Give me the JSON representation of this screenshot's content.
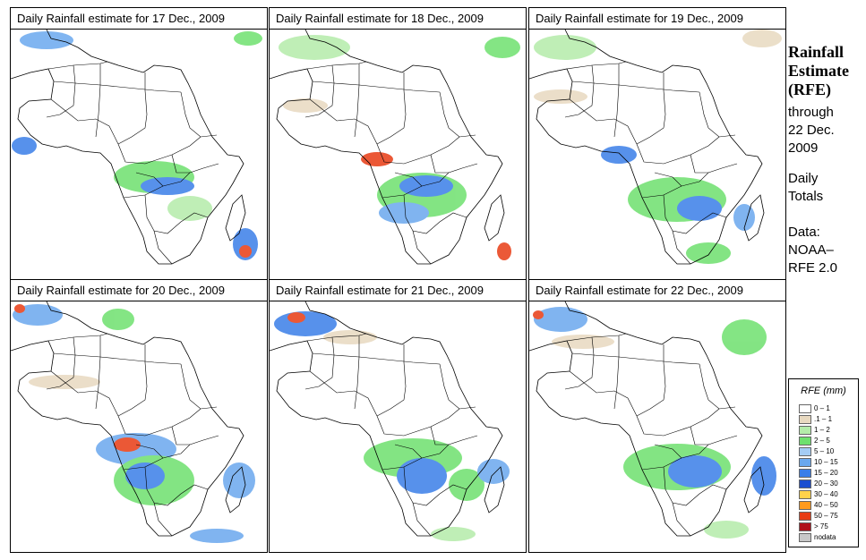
{
  "panels": [
    {
      "title": "Daily Rainfall estimate for  17 Dec., 2009"
    },
    {
      "title": "Daily Rainfall estimate for  18 Dec., 2009"
    },
    {
      "title": "Daily Rainfall estimate for  19 Dec., 2009"
    },
    {
      "title": "Daily Rainfall estimate for  20 Dec., 2009"
    },
    {
      "title": "Daily Rainfall estimate for  21 Dec., 2009"
    },
    {
      "title": "Daily Rainfall estimate for  22 Dec., 2009"
    }
  ],
  "sidebar": {
    "title_line1": "Rainfall",
    "title_line2": "Estimate",
    "title_line3": "(RFE)",
    "through_line1": "through",
    "through_line2": "22 Dec.",
    "through_line3": "2009",
    "daily_line1": "Daily",
    "daily_line2": "Totals",
    "data_line1": "Data:",
    "data_line2": "NOAA–",
    "data_line3": "RFE 2.0"
  },
  "legend": {
    "title": "RFE (mm)",
    "entries": [
      {
        "label": "0 – 1",
        "color": "#ffffff"
      },
      {
        "label": ".1 – 1",
        "color": "#e8d9c0"
      },
      {
        "label": "1 – 2",
        "color": "#b4ecaa"
      },
      {
        "label": "2 – 5",
        "color": "#6ee06e"
      },
      {
        "label": "5 – 10",
        "color": "#a4ccf4"
      },
      {
        "label": "10 – 15",
        "color": "#6aa8ee"
      },
      {
        "label": "15 – 20",
        "color": "#3a7ee8"
      },
      {
        "label": "20 – 30",
        "color": "#1c4ed0"
      },
      {
        "label": "30 – 40",
        "color": "#ffd24a"
      },
      {
        "label": "40 – 50",
        "color": "#ff9a1c"
      },
      {
        "label": "50 – 75",
        "color": "#e83c14"
      },
      {
        "label": "> 75",
        "color": "#b0101a"
      },
      {
        "label": "nodata",
        "color": "#c8c8c8"
      }
    ]
  }
}
